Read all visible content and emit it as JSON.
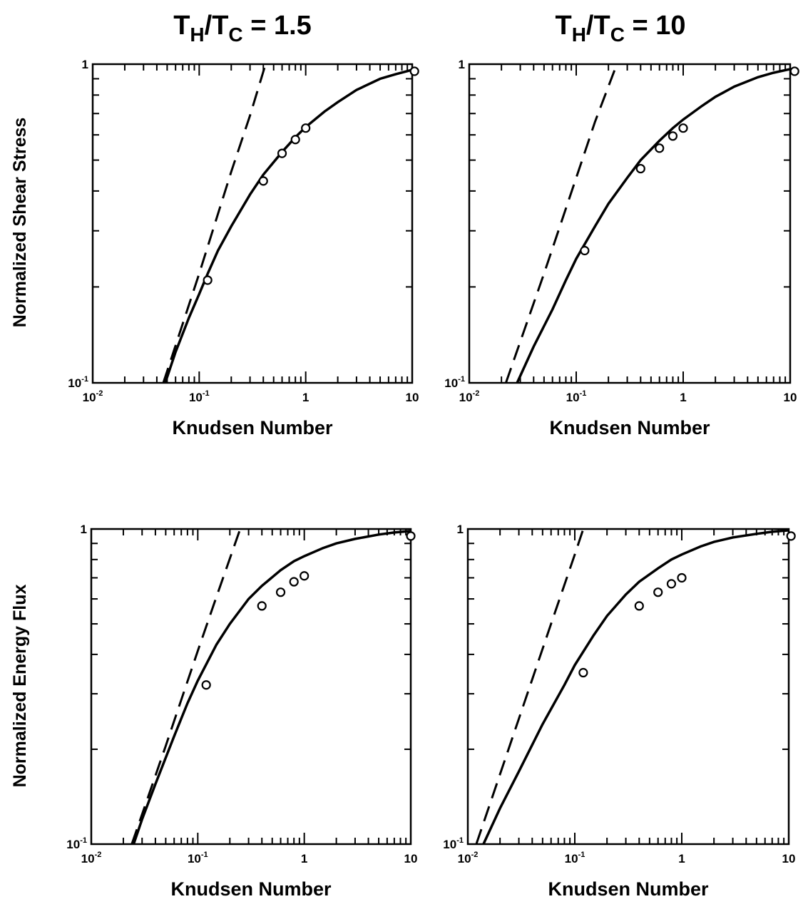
{
  "column_titles": [
    {
      "main": "T",
      "sub1": "H",
      "slash": "/T",
      "sub2": "C",
      "rest": " = 1.5"
    },
    {
      "main": "T",
      "sub1": "H",
      "slash": "/T",
      "sub2": "C",
      "rest": " = 10"
    }
  ],
  "row_labels": [
    "Normalized Shear Stress",
    "Normalized Energy Flux"
  ],
  "chart_data": [
    {
      "type": "line",
      "title": "",
      "xlabel": "Knudsen Number",
      "ylabel": "Normalized Shear Stress",
      "xscale": "log",
      "yscale": "log",
      "xlim": [
        0.01,
        10
      ],
      "ylim": [
        0.1,
        1
      ],
      "x_tick_labels": [
        {
          "base": "10",
          "exp": "-2"
        },
        {
          "base": "10",
          "exp": "-1"
        },
        {
          "base": "1",
          "exp": ""
        },
        {
          "base": "10",
          "exp": ""
        }
      ],
      "y_tick_labels": [
        {
          "base": "10",
          "exp": "-1"
        },
        {
          "base": "1",
          "exp": ""
        }
      ],
      "series": [
        {
          "style": "solid",
          "x": [
            0.048,
            0.06,
            0.08,
            0.1,
            0.12,
            0.15,
            0.2,
            0.3,
            0.4,
            0.6,
            0.8,
            1,
            1.5,
            2,
            3,
            5,
            7,
            10
          ],
          "y": [
            0.1,
            0.125,
            0.16,
            0.19,
            0.22,
            0.26,
            0.31,
            0.39,
            0.45,
            0.53,
            0.59,
            0.635,
            0.71,
            0.76,
            0.83,
            0.9,
            0.93,
            0.96
          ]
        },
        {
          "style": "dashed",
          "x": [
            0.046,
            0.1,
            0.2,
            0.3,
            0.42
          ],
          "y": [
            0.1,
            0.22,
            0.46,
            0.69,
            1.0
          ]
        },
        {
          "style": "markers",
          "x": [
            0.12,
            0.4,
            0.6,
            0.8,
            1.0,
            10.5
          ],
          "y": [
            0.21,
            0.43,
            0.525,
            0.58,
            0.63,
            0.95
          ]
        }
      ]
    },
    {
      "type": "line",
      "title": "",
      "xlabel": "Knudsen Number",
      "ylabel": "",
      "xscale": "log",
      "yscale": "log",
      "xlim": [
        0.01,
        10
      ],
      "ylim": [
        0.1,
        1
      ],
      "x_tick_labels": [
        {
          "base": "10",
          "exp": "-2"
        },
        {
          "base": "10",
          "exp": "-1"
        },
        {
          "base": "1",
          "exp": ""
        },
        {
          "base": "10",
          "exp": ""
        }
      ],
      "y_tick_labels": [
        {
          "base": "10",
          "exp": "-1"
        },
        {
          "base": "1",
          "exp": ""
        }
      ],
      "series": [
        {
          "style": "solid",
          "x": [
            0.028,
            0.04,
            0.06,
            0.08,
            0.1,
            0.15,
            0.2,
            0.3,
            0.4,
            0.6,
            0.8,
            1,
            1.5,
            2,
            3,
            5,
            7,
            10
          ],
          "y": [
            0.1,
            0.13,
            0.17,
            0.21,
            0.245,
            0.31,
            0.365,
            0.44,
            0.5,
            0.575,
            0.63,
            0.67,
            0.74,
            0.79,
            0.85,
            0.91,
            0.94,
            0.965
          ]
        },
        {
          "style": "dashed",
          "x": [
            0.022,
            0.05,
            0.1,
            0.15,
            0.24
          ],
          "y": [
            0.1,
            0.22,
            0.44,
            0.66,
            1.0
          ]
        },
        {
          "style": "markers",
          "x": [
            0.12,
            0.4,
            0.6,
            0.8,
            1.0,
            11
          ],
          "y": [
            0.26,
            0.47,
            0.545,
            0.595,
            0.63,
            0.95
          ]
        }
      ]
    },
    {
      "type": "line",
      "title": "",
      "xlabel": "Knudsen Number",
      "ylabel": "Normalized Energy Flux",
      "xscale": "log",
      "yscale": "log",
      "xlim": [
        0.01,
        10
      ],
      "ylim": [
        0.1,
        1
      ],
      "x_tick_labels": [
        {
          "base": "10",
          "exp": "-2"
        },
        {
          "base": "10",
          "exp": "-1"
        },
        {
          "base": "1",
          "exp": ""
        },
        {
          "base": "10",
          "exp": ""
        }
      ],
      "y_tick_labels": [
        {
          "base": "10",
          "exp": "-1"
        },
        {
          "base": "1",
          "exp": ""
        }
      ],
      "series": [
        {
          "style": "solid",
          "x": [
            0.025,
            0.03,
            0.04,
            0.06,
            0.08,
            0.1,
            0.15,
            0.2,
            0.3,
            0.4,
            0.6,
            0.8,
            1,
            1.5,
            2,
            3,
            5,
            7,
            10
          ],
          "y": [
            0.1,
            0.12,
            0.155,
            0.22,
            0.28,
            0.33,
            0.43,
            0.5,
            0.6,
            0.66,
            0.74,
            0.79,
            0.82,
            0.87,
            0.9,
            0.93,
            0.96,
            0.975,
            0.985
          ]
        },
        {
          "style": "dashed",
          "x": [
            0.024,
            0.05,
            0.1,
            0.15,
            0.25
          ],
          "y": [
            0.1,
            0.205,
            0.41,
            0.61,
            1.0
          ]
        },
        {
          "style": "markers",
          "x": [
            0.12,
            0.4,
            0.6,
            0.8,
            1.0,
            10
          ],
          "y": [
            0.32,
            0.57,
            0.63,
            0.68,
            0.71,
            0.95
          ]
        }
      ]
    },
    {
      "type": "line",
      "title": "",
      "xlabel": "Knudsen Number",
      "ylabel": "",
      "xscale": "log",
      "yscale": "log",
      "xlim": [
        0.01,
        10
      ],
      "ylim": [
        0.1,
        1
      ],
      "x_tick_labels": [
        {
          "base": "10",
          "exp": "-2"
        },
        {
          "base": "10",
          "exp": "-1"
        },
        {
          "base": "1",
          "exp": ""
        },
        {
          "base": "10",
          "exp": ""
        }
      ],
      "y_tick_labels": [
        {
          "base": "10",
          "exp": "-1"
        },
        {
          "base": "1",
          "exp": ""
        }
      ],
      "series": [
        {
          "style": "solid",
          "x": [
            0.014,
            0.02,
            0.03,
            0.05,
            0.08,
            0.1,
            0.15,
            0.2,
            0.3,
            0.4,
            0.6,
            0.8,
            1,
            1.5,
            2,
            3,
            5,
            7,
            10
          ],
          "y": [
            0.1,
            0.13,
            0.17,
            0.24,
            0.32,
            0.37,
            0.46,
            0.53,
            0.62,
            0.68,
            0.75,
            0.8,
            0.83,
            0.88,
            0.91,
            0.94,
            0.965,
            0.98,
            0.99
          ]
        },
        {
          "style": "dashed",
          "x": [
            0.012,
            0.03,
            0.06,
            0.1,
            0.12
          ],
          "y": [
            0.1,
            0.25,
            0.5,
            0.83,
            1.0
          ]
        },
        {
          "style": "markers",
          "x": [
            0.12,
            0.4,
            0.6,
            0.8,
            1.0,
            10.5
          ],
          "y": [
            0.35,
            0.57,
            0.63,
            0.67,
            0.7,
            0.95
          ]
        }
      ]
    }
  ]
}
